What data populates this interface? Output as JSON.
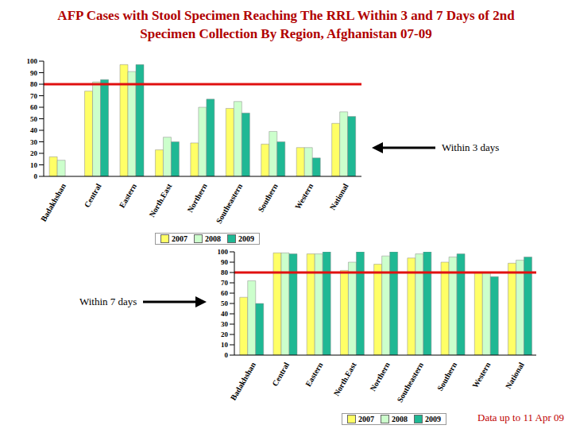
{
  "title": "AFP Cases with Stool Specimen Reaching The RRL Within 3 and 7 Days of 2nd Specimen Collection By Region, Afghanistan 07-09",
  "footnote": "Data up to 11 Apr  09",
  "chart_data": [
    {
      "type": "bar",
      "annotation": "Within 3 days",
      "categories": [
        "Badakhshan",
        "Central",
        "Eastern",
        "North.East",
        "Northern",
        "Southeastern",
        "Southern",
        "Western",
        "National"
      ],
      "series": [
        {
          "name": "2007",
          "color": "#ffff66",
          "values": [
            17,
            74,
            97,
            23,
            29,
            59,
            28,
            25,
            46
          ]
        },
        {
          "name": "2008",
          "color": "#ccffcc",
          "values": [
            14,
            82,
            91,
            34,
            60,
            65,
            39,
            25,
            56
          ]
        },
        {
          "name": "2009",
          "color": "#1fb894",
          "values": [
            null,
            84,
            97,
            30,
            67,
            55,
            30,
            16,
            52
          ]
        }
      ],
      "target": 80,
      "target_color": "#e01010",
      "ylim": [
        0,
        100
      ],
      "yticks": [
        0,
        10,
        20,
        30,
        40,
        50,
        60,
        70,
        80,
        90,
        100
      ],
      "grid": false,
      "legend": "bottom"
    },
    {
      "type": "bar",
      "annotation": "Within 7 days",
      "categories": [
        "Badakhshan",
        "Central",
        "Eastern",
        "North.East",
        "Northern",
        "Southeastern",
        "Southern",
        "Western",
        "National"
      ],
      "series": [
        {
          "name": "2007",
          "color": "#ffff66",
          "values": [
            56,
            99,
            98,
            82,
            88,
            94,
            90,
            80,
            89
          ]
        },
        {
          "name": "2008",
          "color": "#ccffcc",
          "values": [
            72,
            99,
            98,
            90,
            96,
            98,
            95,
            80,
            92
          ]
        },
        {
          "name": "2009",
          "color": "#1fb894",
          "values": [
            50,
            98,
            100,
            100,
            100,
            100,
            98,
            76,
            95
          ]
        }
      ],
      "target": 80,
      "target_color": "#e01010",
      "ylim": [
        0,
        100
      ],
      "yticks": [
        0,
        10,
        20,
        30,
        40,
        50,
        60,
        70,
        80,
        90,
        100
      ],
      "grid": false,
      "legend": "bottom"
    }
  ]
}
